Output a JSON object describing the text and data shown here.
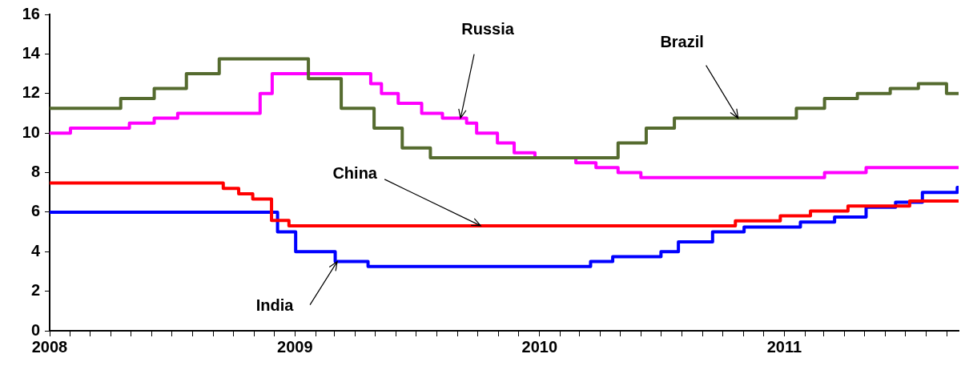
{
  "chart_data": {
    "type": "step",
    "marker": "none",
    "xlim": [
      "2008-01-01",
      "2011-09-18"
    ],
    "xticks": [
      "2008",
      {
        "value": "2008-02",
        "label": null
      },
      {
        "value": "2008-03",
        "label": null
      },
      {
        "value": "2008-04",
        "label": null
      },
      {
        "value": "2008-05",
        "label": null
      },
      {
        "value": "2008-06",
        "label": null
      },
      {
        "value": "2008-07",
        "label": null
      },
      {
        "value": "2008-08",
        "label": null
      },
      {
        "value": "2008-09",
        "label": null
      },
      {
        "value": "2008-10",
        "label": null
      },
      {
        "value": "2008-11",
        "label": null
      },
      {
        "value": "2008-12",
        "label": null
      },
      "2009",
      {
        "value": "2009-02",
        "label": null
      },
      {
        "value": "2009-03",
        "label": null
      },
      {
        "value": "2009-04",
        "label": null
      },
      {
        "value": "2009-05",
        "label": null
      },
      {
        "value": "2009-06",
        "label": null
      },
      {
        "value": "2009-07",
        "label": null
      },
      {
        "value": "2009-08",
        "label": null
      },
      {
        "value": "2009-09",
        "label": null
      },
      {
        "value": "2009-10",
        "label": null
      },
      {
        "value": "2009-11",
        "label": null
      },
      {
        "value": "2009-12",
        "label": null
      },
      "2010",
      {
        "value": "2010-02",
        "label": null
      },
      {
        "value": "2010-03",
        "label": null
      },
      {
        "value": "2010-04",
        "label": null
      },
      {
        "value": "2010-05",
        "label": null
      },
      {
        "value": "2010-06",
        "label": null
      },
      {
        "value": "2010-07",
        "label": null
      },
      {
        "value": "2010-08",
        "label": null
      },
      {
        "value": "2010-09",
        "label": null
      },
      {
        "value": "2010-10",
        "label": null
      },
      {
        "value": "2010-11",
        "label": null
      },
      {
        "value": "2010-12",
        "label": null
      },
      "2011",
      {
        "value": "2011-02",
        "label": null
      },
      {
        "value": "2011-03",
        "label": null
      },
      {
        "value": "2011-04",
        "label": null
      },
      {
        "value": "2011-05",
        "label": null
      },
      {
        "value": "2011-06",
        "label": null
      },
      {
        "value": "2011-07",
        "label": null
      },
      {
        "value": "2011-08",
        "label": null
      },
      {
        "value": "2011-09",
        "label": null
      }
    ],
    "annotations": [
      {
        "text": "Brazil",
        "x": "2010-10-24",
        "y": 10.75
      },
      {
        "text": "Russia",
        "x": "2009-09-05",
        "y": 10.75
      },
      {
        "text": "China",
        "x": "2009-10-05",
        "y": 5.31
      },
      {
        "text": "India",
        "x": "2009-03-05",
        "y": 3.5
      }
    ],
    "ylim": [
      0,
      16
    ],
    "yticks": [
      0,
      2,
      4,
      6,
      8,
      10,
      12,
      14,
      16
    ],
    "series": [
      {
        "color": "#556b2f",
        "x": [
          "2008-01-01",
          "2008-04-16",
          "2008-06-05",
          "2008-07-23",
          "2008-09-10",
          "2009-01-21",
          "2009-03-11",
          "2009-04-29",
          "2009-06-10",
          "2009-07-22",
          "2010-04-28",
          "2010-06-09",
          "2010-07-21",
          "2011-01-19",
          "2011-03-02",
          "2011-04-20",
          "2011-06-08",
          "2011-07-20",
          "2011-08-31",
          "2011-09-18"
        ],
        "values": [
          11.25,
          11.75,
          12.25,
          13,
          13.75,
          12.75,
          11.25,
          10.25,
          9.25,
          8.75,
          9.5,
          10.25,
          10.75,
          11.25,
          11.75,
          12,
          12.25,
          12.5,
          12,
          12
        ]
      },
      {
        "color": "#ff00ff",
        "x": [
          "2008-01-01",
          "2008-02-01",
          "2008-04-29",
          "2008-06-05",
          "2008-07-10",
          "2008-11-10",
          "2008-11-28",
          "2009-04-24",
          "2009-05-10",
          "2009-06-04",
          "2009-07-09",
          "2009-08-09",
          "2009-09-14",
          "2009-09-29",
          "2009-10-30",
          "2009-11-24",
          "2009-12-25",
          "2010-02-24",
          "2010-03-26",
          "2010-04-28",
          "2010-06-01",
          "2011-03-02",
          "2011-05-03",
          "2011-09-18"
        ],
        "values": [
          10,
          10.25,
          10.5,
          10.75,
          11,
          12,
          13,
          12.5,
          12,
          11.5,
          11,
          10.75,
          10.5,
          10,
          9.5,
          9,
          8.75,
          8.5,
          8.25,
          8,
          7.75,
          8,
          8.25,
          8.25
        ]
      },
      {
        "color": "#ff0000",
        "x": [
          "2008-01-01",
          "2008-09-16",
          "2008-10-09",
          "2008-10-30",
          "2008-11-27",
          "2008-12-23",
          "2010-10-20",
          "2010-12-26",
          "2011-02-09",
          "2011-04-06",
          "2011-07-07",
          "2011-09-18"
        ],
        "values": [
          7.47,
          7.2,
          6.93,
          6.66,
          5.58,
          5.31,
          5.56,
          5.81,
          6.06,
          6.31,
          6.56,
          6.56
        ]
      },
      {
        "color": "#0000ff",
        "x": [
          "2008-01-01",
          "2008-12-06",
          "2009-01-02",
          "2009-03-02",
          "2009-04-20",
          "2010-03-18",
          "2010-04-20",
          "2010-07-01",
          "2010-07-27",
          "2010-09-16",
          "2010-11-02",
          "2011-01-25",
          "2011-03-17",
          "2011-05-03",
          "2011-06-16",
          "2011-07-26",
          "2011-09-16",
          "2011-09-18"
        ],
        "values": [
          6,
          5,
          4,
          3.5,
          3.25,
          3.5,
          3.75,
          4,
          4.5,
          5,
          5.25,
          5.5,
          5.75,
          6.25,
          6.5,
          7,
          7.25,
          7.25
        ]
      }
    ]
  }
}
